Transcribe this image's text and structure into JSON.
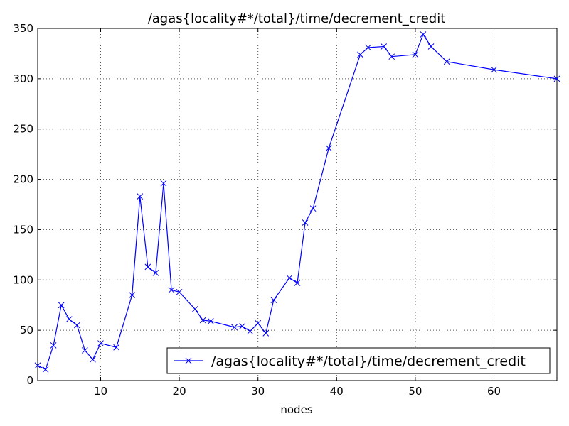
{
  "chart_data": {
    "type": "line",
    "title": "/agas{locality#*/total}/time/decrement_credit",
    "x_label": "nodes",
    "x": [
      2,
      3,
      4,
      5,
      6,
      7,
      8,
      9,
      10,
      12,
      14,
      15,
      16,
      17,
      18,
      19,
      20,
      22,
      23,
      24,
      27,
      28,
      29,
      30,
      31,
      32,
      34,
      35,
      36,
      37,
      39,
      43,
      44,
      46,
      47,
      50,
      51,
      52,
      54,
      60,
      68
    ],
    "series": [
      {
        "name": "/agas{locality#*/total}/time/decrement_credit",
        "color": "#0000ff",
        "values": [
          15,
          11,
          35,
          75,
          61,
          55,
          30,
          21,
          37,
          33,
          85,
          183,
          113,
          107,
          196,
          90,
          88,
          71,
          60,
          59,
          53,
          54,
          49,
          57,
          47,
          80,
          102,
          97,
          157,
          171,
          231,
          324,
          331,
          332,
          322,
          324,
          344,
          332,
          317,
          309,
          300
        ]
      }
    ],
    "xlim": [
      2,
      68
    ],
    "xticks": [
      10,
      20,
      30,
      40,
      50,
      60
    ],
    "ylim": [
      0,
      350
    ],
    "yticks": [
      0,
      50,
      100,
      150,
      200,
      250,
      300,
      350
    ],
    "grid": true,
    "legend": "lower right"
  }
}
